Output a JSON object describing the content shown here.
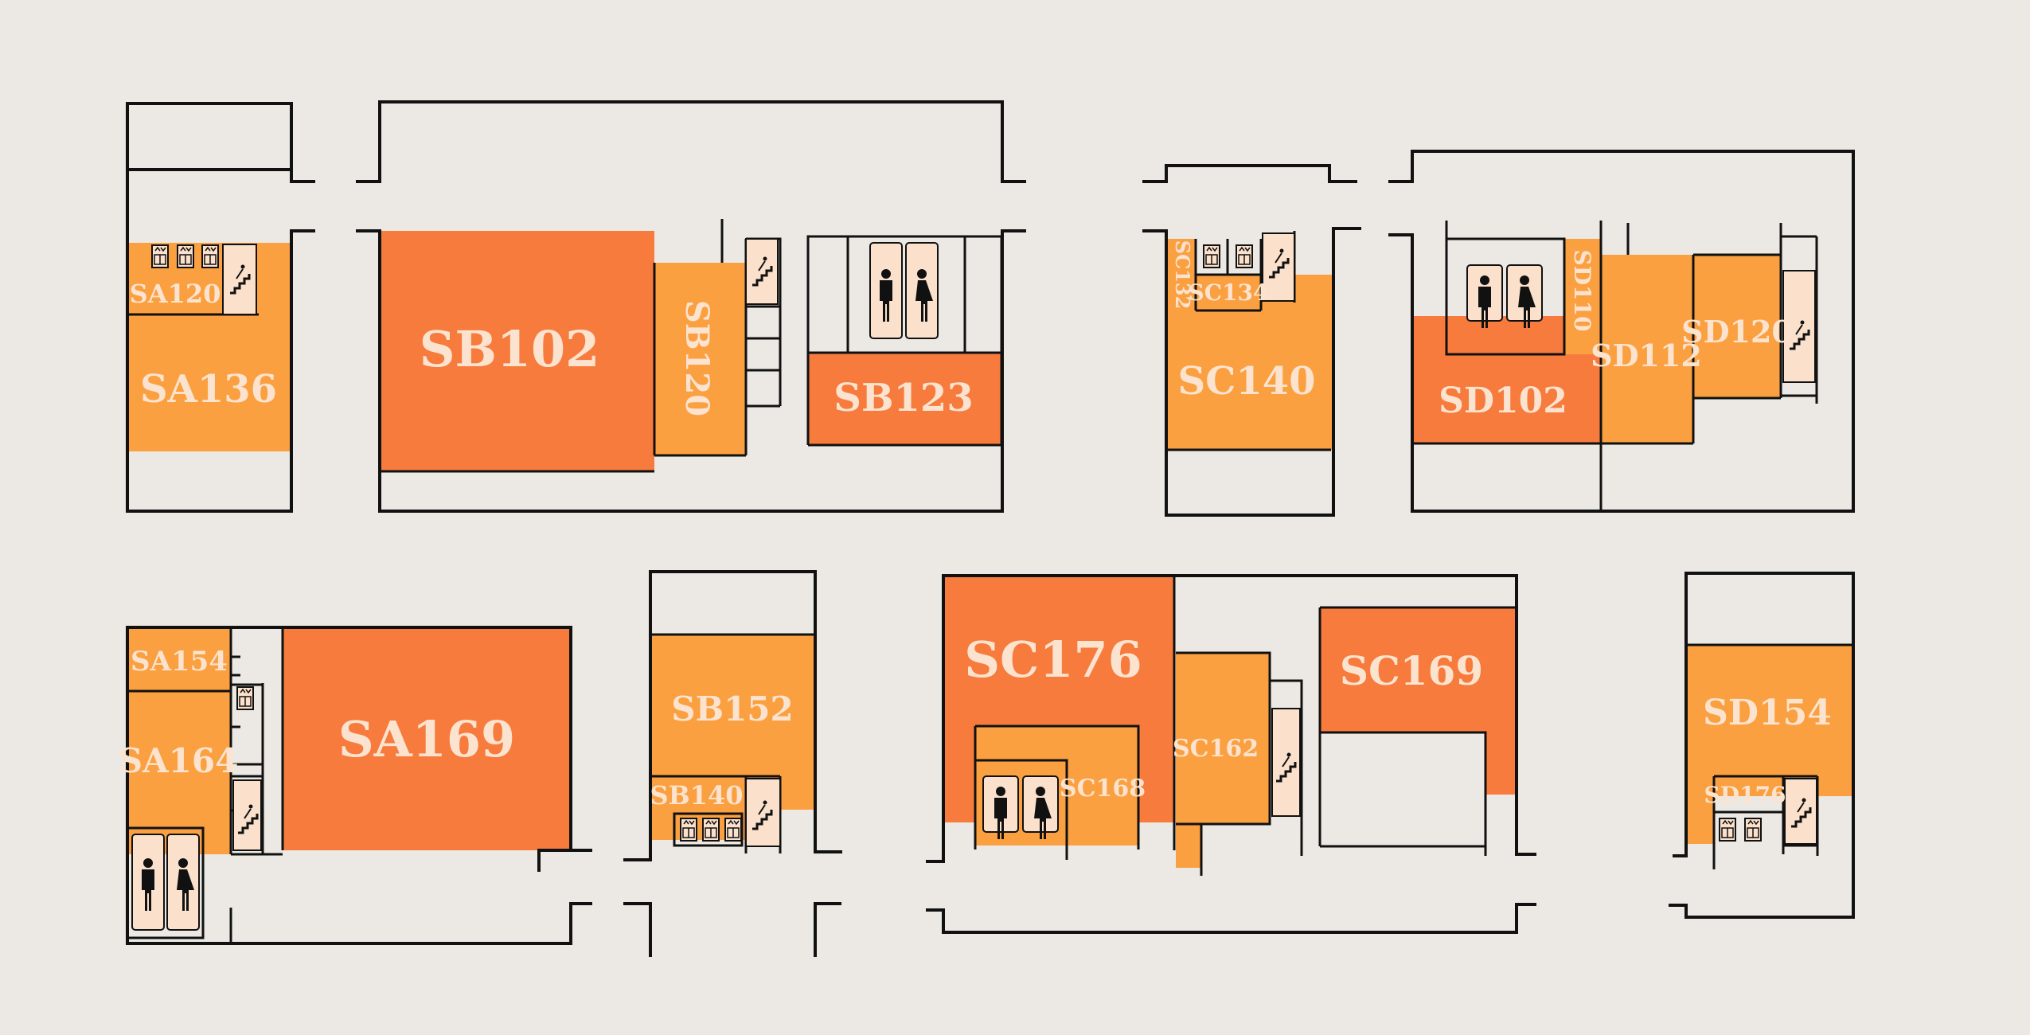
{
  "map": {
    "colors": {
      "background": "#ece9e4",
      "room_primary": "#f77b3d",
      "room_secondary": "#fba040",
      "label": "#fbe3cf",
      "wall": "#111111",
      "fixture": "#fbe1cc"
    },
    "rooms": {
      "SA120": "SA120",
      "SA136": "SA136",
      "SB102": "SB102",
      "SB120": "SB120",
      "SB123": "SB123",
      "SC132": "SC132",
      "SC134": "SC134",
      "SC140": "SC140",
      "SD110": "SD110",
      "SD102": "SD102",
      "SD112": "SD112",
      "SD120": "SD120",
      "SA154": "SA154",
      "SA164": "SA164",
      "SA169": "SA169",
      "SB152": "SB152",
      "SB140": "SB140",
      "SC176": "SC176",
      "SC162": "SC162",
      "SC168": "SC168",
      "SC169": "SC169",
      "SD154": "SD154",
      "SD176": "SD176"
    },
    "icons": [
      "restroom-icon",
      "elevator-icon",
      "stairs-icon"
    ]
  }
}
